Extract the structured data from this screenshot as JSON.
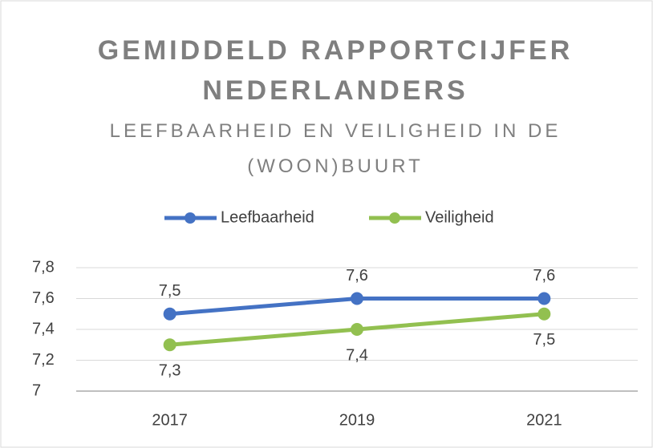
{
  "chart_data": {
    "type": "line",
    "title": "GEMIDDELD RAPPORTCIJFER NEDERLANDERS",
    "subtitle": "LEEFBAARHEID EN VEILIGHEID IN DE (WOON)BUURT",
    "categories": [
      "2017",
      "2019",
      "2021"
    ],
    "series": [
      {
        "name": "Leefbaarheid",
        "color": "#4472c4",
        "values": [
          7.5,
          7.6,
          7.6
        ],
        "value_labels": [
          "7,5",
          "7,6",
          "7,6"
        ],
        "label_position": "above"
      },
      {
        "name": "Veiligheid",
        "color": "#92c050",
        "values": [
          7.3,
          7.4,
          7.5
        ],
        "value_labels": [
          "7,3",
          "7,4",
          "7,5"
        ],
        "label_position": "below"
      }
    ],
    "ylim": [
      7,
      7.8
    ],
    "yticks": [
      7,
      {
        "value": 7.2,
        "label": "7,2"
      },
      {
        "value": 7.4,
        "label": "7,4"
      },
      {
        "value": 7.6,
        "label": "7,6"
      },
      {
        "value": 7.8,
        "label": "7,8"
      }
    ],
    "grid": true,
    "legend": "top"
  }
}
